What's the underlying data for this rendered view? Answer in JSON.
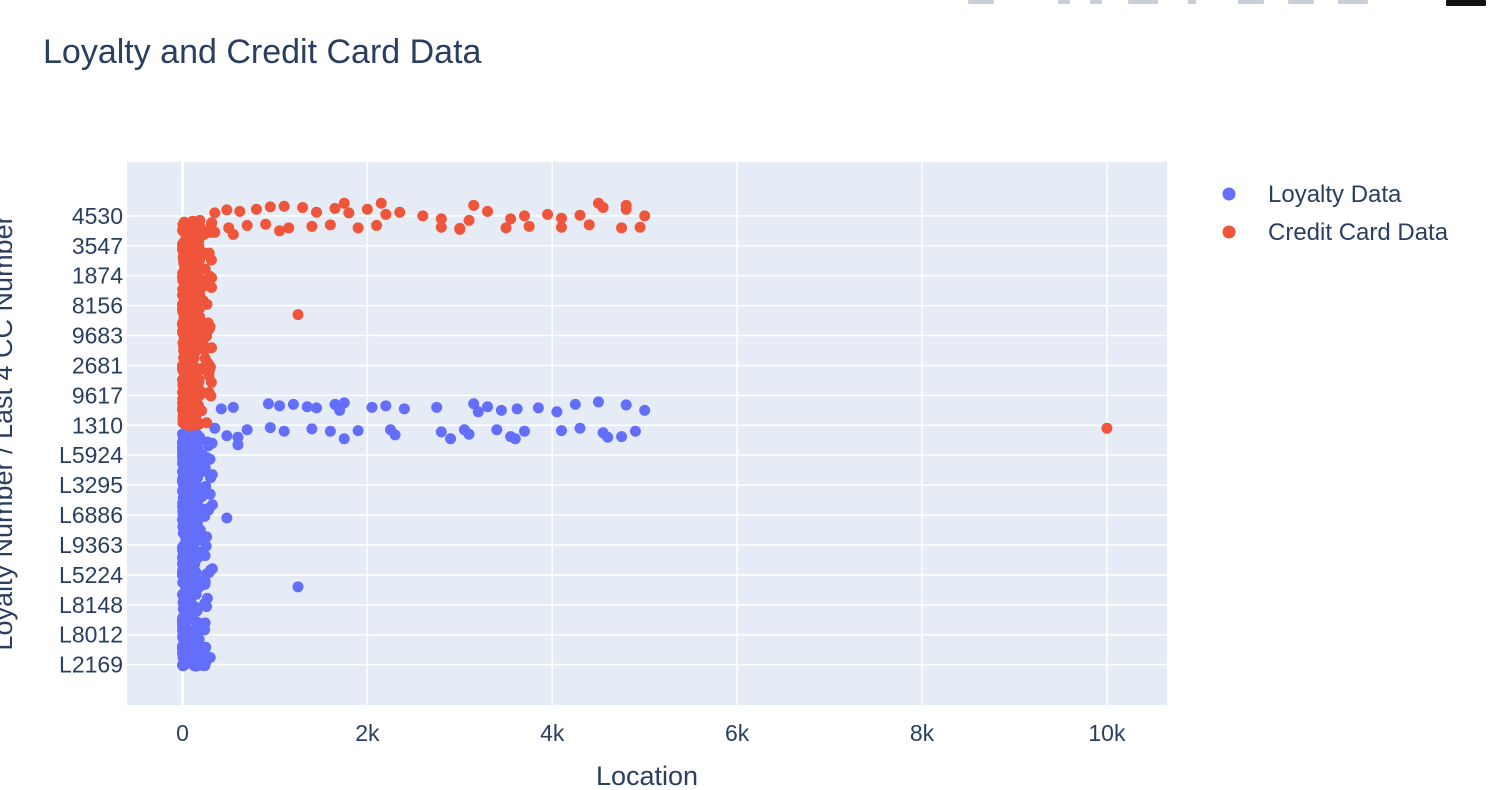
{
  "chart_data": {
    "type": "scatter",
    "title": "Loyalty and Credit Card Data",
    "xlabel": "Location",
    "ylabel": "Loyalty Number / Last 4 CC Number",
    "xlim": [
      -600,
      10650
    ],
    "x_ticks": [
      {
        "value": 0,
        "label": "0"
      },
      {
        "value": 2000,
        "label": "2k"
      },
      {
        "value": 4000,
        "label": "4k"
      },
      {
        "value": 6000,
        "label": "6k"
      },
      {
        "value": 8000,
        "label": "8k"
      },
      {
        "value": 10000,
        "label": "10k"
      }
    ],
    "y_categories": [
      "L2169",
      "L8012",
      "L8148",
      "L5224",
      "L9363",
      "L6886",
      "L3295",
      "L5924",
      "1310",
      "9617",
      "2681",
      "9683",
      "8156",
      "1874",
      "3547",
      "4530"
    ],
    "grid": true,
    "legend_position": "top-right",
    "series": [
      {
        "name": "Loyalty Data",
        "color": "#636efa",
        "points": [
          [
            420,
            8.55
          ],
          [
            550,
            8.6
          ],
          [
            930,
            8.72
          ],
          [
            1050,
            8.65
          ],
          [
            1200,
            8.7
          ],
          [
            1350,
            8.62
          ],
          [
            1450,
            8.58
          ],
          [
            1650,
            8.7
          ],
          [
            1750,
            8.75
          ],
          [
            2050,
            8.6
          ],
          [
            2200,
            8.65
          ],
          [
            2400,
            8.55
          ],
          [
            2750,
            8.6
          ],
          [
            3150,
            8.72
          ],
          [
            3300,
            8.62
          ],
          [
            3450,
            8.5
          ],
          [
            3620,
            8.55
          ],
          [
            3850,
            8.58
          ],
          [
            4050,
            8.45
          ],
          [
            4250,
            8.7
          ],
          [
            4500,
            8.78
          ],
          [
            4800,
            8.68
          ],
          [
            5000,
            8.5
          ],
          [
            3200,
            8.45
          ],
          [
            1700,
            8.5
          ],
          [
            480,
            7.65
          ],
          [
            700,
            7.85
          ],
          [
            950,
            7.92
          ],
          [
            1100,
            7.8
          ],
          [
            1400,
            7.88
          ],
          [
            1600,
            7.8
          ],
          [
            1900,
            7.82
          ],
          [
            2250,
            7.85
          ],
          [
            2800,
            7.78
          ],
          [
            3050,
            7.85
          ],
          [
            3400,
            7.85
          ],
          [
            3700,
            7.8
          ],
          [
            4100,
            7.82
          ],
          [
            4300,
            7.9
          ],
          [
            4550,
            7.75
          ],
          [
            4900,
            7.8
          ],
          [
            600,
            7.6
          ],
          [
            2300,
            7.68
          ],
          [
            3100,
            7.7
          ],
          [
            3550,
            7.62
          ],
          [
            2900,
            7.55
          ],
          [
            3600,
            7.55
          ],
          [
            4600,
            7.6
          ],
          [
            1750,
            7.55
          ],
          [
            4750,
            7.62
          ],
          [
            1250,
            2.6
          ],
          [
            480,
            4.9
          ],
          [
            600,
            7.35
          ],
          [
            320,
            7.4
          ],
          [
            350,
            7.9
          ]
        ]
      },
      {
        "name": "Credit Card Data",
        "color": "#ef553b",
        "points": [
          [
            350,
            15.1
          ],
          [
            480,
            15.2
          ],
          [
            620,
            15.15
          ],
          [
            800,
            15.22
          ],
          [
            950,
            15.3
          ],
          [
            1100,
            15.32
          ],
          [
            1300,
            15.28
          ],
          [
            1450,
            15.12
          ],
          [
            1650,
            15.25
          ],
          [
            1800,
            15.1
          ],
          [
            2000,
            15.22
          ],
          [
            2200,
            15.05
          ],
          [
            2350,
            15.12
          ],
          [
            2600,
            15.0
          ],
          [
            2800,
            14.9
          ],
          [
            3100,
            14.85
          ],
          [
            3300,
            15.15
          ],
          [
            3550,
            14.9
          ],
          [
            3700,
            15.0
          ],
          [
            3950,
            15.05
          ],
          [
            4100,
            14.92
          ],
          [
            4300,
            15.02
          ],
          [
            4550,
            15.28
          ],
          [
            4800,
            15.22
          ],
          [
            5000,
            15.0
          ],
          [
            1750,
            15.42
          ],
          [
            2150,
            15.42
          ],
          [
            3150,
            15.35
          ],
          [
            4500,
            15.42
          ],
          [
            4800,
            15.35
          ],
          [
            500,
            14.6
          ],
          [
            700,
            14.68
          ],
          [
            900,
            14.72
          ],
          [
            1150,
            14.6
          ],
          [
            1400,
            14.65
          ],
          [
            1600,
            14.7
          ],
          [
            1900,
            14.6
          ],
          [
            2100,
            14.68
          ],
          [
            2800,
            14.62
          ],
          [
            3000,
            14.58
          ],
          [
            3500,
            14.6
          ],
          [
            3750,
            14.65
          ],
          [
            4100,
            14.62
          ],
          [
            4400,
            14.7
          ],
          [
            4750,
            14.6
          ],
          [
            4950,
            14.62
          ],
          [
            350,
            14.45
          ],
          [
            550,
            14.38
          ],
          [
            1050,
            14.5
          ],
          [
            3000,
            14.55
          ],
          [
            1250,
            11.7
          ],
          [
            10000,
            7.9
          ]
        ]
      }
    ]
  }
}
